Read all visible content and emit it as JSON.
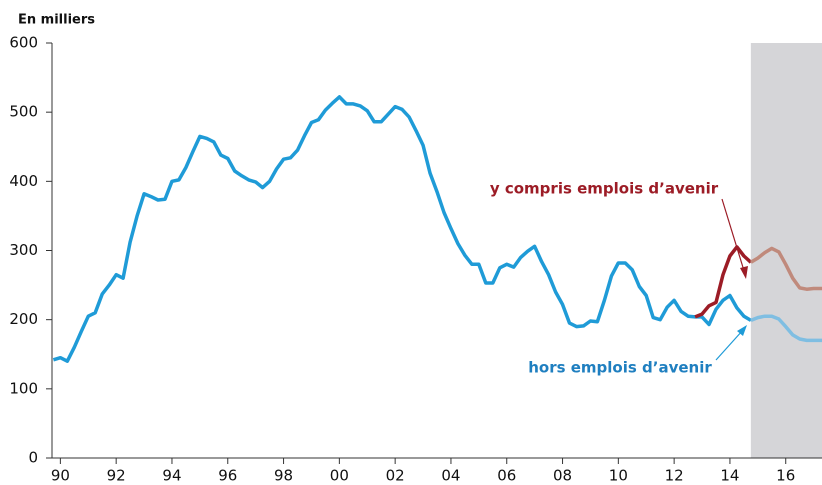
{
  "chart_data": {
    "type": "line",
    "y_label": "En milliers",
    "xlim": [
      1989.7,
      2017.3
    ],
    "ylim": [
      0,
      600
    ],
    "yticks": [
      0,
      100,
      200,
      300,
      400,
      500,
      600
    ],
    "xticks": [
      {
        "value": 1990,
        "label": "90"
      },
      {
        "value": 1992,
        "label": "92"
      },
      {
        "value": 1994,
        "label": "94"
      },
      {
        "value": 1996,
        "label": "96"
      },
      {
        "value": 1998,
        "label": "98"
      },
      {
        "value": 2000,
        "label": "00"
      },
      {
        "value": 2002,
        "label": "02"
      },
      {
        "value": 2004,
        "label": "04"
      },
      {
        "value": 2006,
        "label": "06"
      },
      {
        "value": 2008,
        "label": "08"
      },
      {
        "value": 2010,
        "label": "10"
      },
      {
        "value": 2012,
        "label": "12"
      },
      {
        "value": 2014,
        "label": "14"
      },
      {
        "value": 2016,
        "label": "16"
      }
    ],
    "shade_start": 2014.75,
    "shade_color": "#d5d5d8",
    "series": [
      {
        "name": "hors emplois d’avenir",
        "color": "#1f9bd7",
        "x": [
          1989.75,
          1990,
          1990.25,
          1990.5,
          1990.75,
          1991,
          1991.25,
          1991.5,
          1991.75,
          1992,
          1992.25,
          1992.5,
          1992.75,
          1993,
          1993.25,
          1993.5,
          1993.75,
          1994,
          1994.25,
          1994.5,
          1994.75,
          1995,
          1995.25,
          1995.5,
          1995.75,
          1996,
          1996.25,
          1996.5,
          1996.75,
          1997,
          1997.25,
          1997.5,
          1997.75,
          1998,
          1998.25,
          1998.5,
          1998.75,
          1999,
          1999.25,
          1999.5,
          1999.75,
          2000,
          2000.25,
          2000.5,
          2000.75,
          2001,
          2001.25,
          2001.5,
          2001.75,
          2002,
          2002.25,
          2002.5,
          2002.75,
          2003,
          2003.25,
          2003.5,
          2003.75,
          2004,
          2004.25,
          2004.5,
          2004.75,
          2005,
          2005.25,
          2005.5,
          2005.75,
          2006,
          2006.25,
          2006.5,
          2006.75,
          2007,
          2007.25,
          2007.5,
          2007.75,
          2008,
          2008.25,
          2008.5,
          2008.75,
          2009,
          2009.25,
          2009.5,
          2009.75,
          2010,
          2010.25,
          2010.5,
          2010.75,
          2011,
          2011.25,
          2011.5,
          2011.75,
          2012,
          2012.25,
          2012.5,
          2012.75,
          2013,
          2013.25,
          2013.5,
          2013.75,
          2014,
          2014.25,
          2014.5,
          2014.75
        ],
        "values": [
          142,
          145,
          140,
          160,
          183,
          205,
          210,
          237,
          250,
          265,
          260,
          312,
          350,
          382,
          378,
          373,
          374,
          400,
          402,
          420,
          443,
          465,
          462,
          457,
          438,
          433,
          415,
          408,
          402,
          399,
          391,
          400,
          418,
          432,
          434,
          445,
          466,
          485,
          489,
          503,
          513,
          522,
          512,
          512,
          509,
          502,
          486,
          486,
          497,
          508,
          504,
          493,
          473,
          452,
          412,
          385,
          355,
          332,
          310,
          293,
          280,
          280,
          253,
          253,
          275,
          280,
          276,
          290,
          299,
          306,
          284,
          265,
          240,
          222,
          195,
          190,
          191,
          198,
          197,
          228,
          263,
          282,
          282,
          272,
          248,
          235,
          203,
          200,
          218,
          228,
          212,
          205,
          204,
          204,
          193,
          215,
          228,
          235,
          217,
          205,
          199
        ]
      },
      {
        "color": "#7fbee2",
        "x": [
          2014.75,
          2015,
          2015.25,
          2015.5,
          2015.75,
          2016,
          2016.25,
          2016.5,
          2016.75,
          2017,
          2017.25,
          2017.3
        ],
        "values": [
          199,
          203,
          205,
          205,
          201,
          190,
          178,
          172,
          170,
          170,
          170,
          170
        ]
      },
      {
        "name": "y compris emplois d’avenir",
        "color": "#9c1c26",
        "x": [
          2012.75,
          2013,
          2013.25,
          2013.5,
          2013.75,
          2014,
          2014.25,
          2014.5,
          2014.75
        ],
        "values": [
          204,
          208,
          220,
          225,
          265,
          292,
          305,
          292,
          283
        ]
      },
      {
        "color": "#c08a7c",
        "x": [
          2014.75,
          2015,
          2015.25,
          2015.5,
          2015.75,
          2016,
          2016.25,
          2016.5,
          2016.75,
          2017,
          2017.25,
          2017.3
        ],
        "values": [
          283,
          289,
          297,
          303,
          298,
          280,
          260,
          246,
          244,
          245,
          245,
          245
        ]
      }
    ]
  }
}
